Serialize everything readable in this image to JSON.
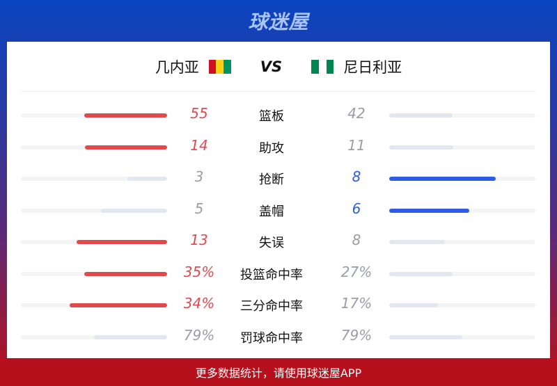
{
  "header": {
    "logo": "球迷屋"
  },
  "teams": {
    "home": "几内亚",
    "vs": "VS",
    "away": "尼日利亚",
    "home_flag": [
      "#ce1126",
      "#fcd116",
      "#009460"
    ],
    "away_flag": [
      "#008751",
      "#ffffff",
      "#008751"
    ]
  },
  "colors": {
    "home_win": "#e04a4f",
    "away_win": "#2e5ce6",
    "lose_bar": "#e3e8f0",
    "lose_text": "#9a9ca8",
    "track": "#f3f4f6"
  },
  "stats": [
    {
      "label": "篮板",
      "home": "55",
      "away": "42",
      "winner": "home"
    },
    {
      "label": "助攻",
      "home": "14",
      "away": "11",
      "winner": "home"
    },
    {
      "label": "抢断",
      "home": "3",
      "away": "8",
      "winner": "away"
    },
    {
      "label": "盖帽",
      "home": "5",
      "away": "6",
      "winner": "away"
    },
    {
      "label": "失误",
      "home": "13",
      "away": "8",
      "winner": "home"
    },
    {
      "label": "投篮命中率",
      "home": "35%",
      "away": "27%",
      "winner": "home"
    },
    {
      "label": "三分命中率",
      "home": "34%",
      "away": "17%",
      "winner": "home"
    },
    {
      "label": "罚球命中率",
      "home": "79%",
      "away": "79%",
      "winner": "none"
    }
  ],
  "footer": {
    "text": "更多数据统计，请使用球迷屋APP"
  }
}
